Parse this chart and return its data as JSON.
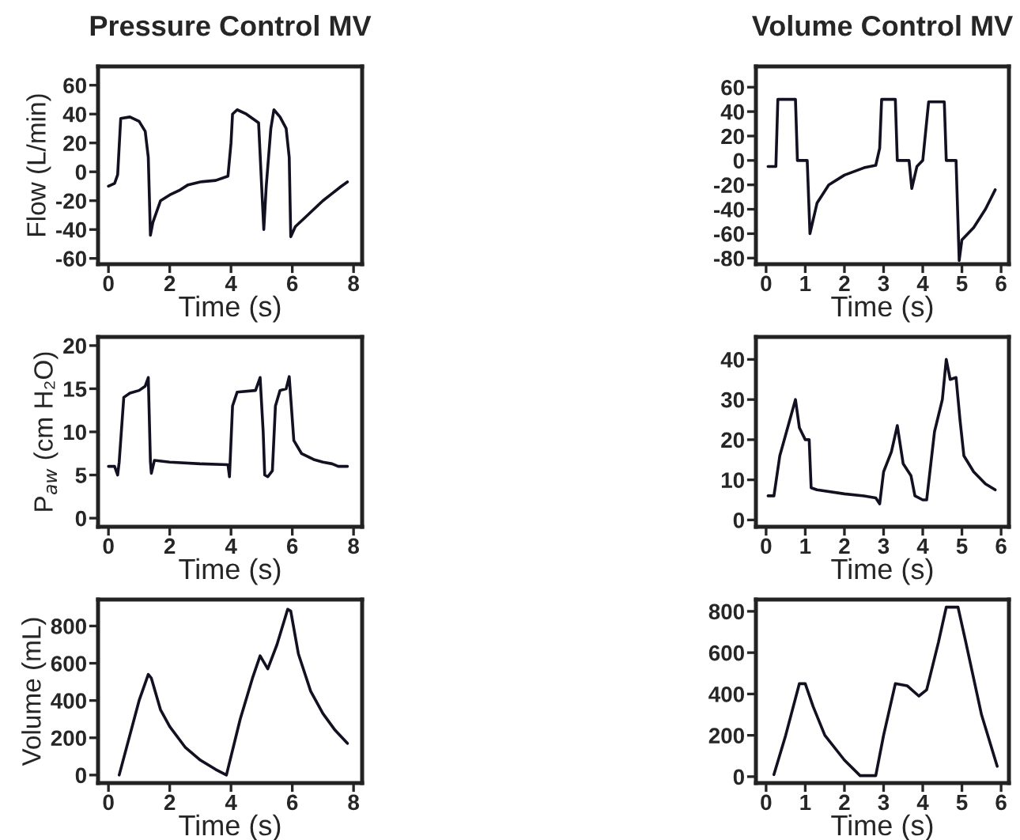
{
  "chart_data": [
    {
      "type": "line",
      "title": "Pressure Control MV",
      "xlabel": "Time (s)",
      "ylabel": "Flow (L/min)",
      "xlim": [
        -0.34,
        8.28
      ],
      "ylim": [
        -64,
        73
      ],
      "xticks": [
        0,
        2,
        4,
        6,
        8
      ],
      "yticks": [
        -60,
        -40,
        -20,
        0,
        20,
        40,
        60
      ],
      "grid": false,
      "legend": false,
      "marker": "none",
      "line_style": "solid",
      "series": [
        {
          "color": "#111122",
          "x": [
            0,
            0.2,
            0.3,
            0.4,
            0.7,
            1.0,
            1.2,
            1.3,
            1.37,
            1.45,
            1.7,
            2,
            2.3,
            2.6,
            3,
            3.5,
            3.9,
            4.0,
            4.05,
            4.2,
            4.5,
            4.9,
            5.0,
            5.07,
            5.15,
            5.3,
            5.4,
            5.6,
            5.8,
            5.9,
            5.95,
            6.1,
            6.5,
            7,
            7.3,
            7.6,
            7.8
          ],
          "values": [
            -10,
            -8,
            -2,
            37,
            38,
            35,
            28,
            10,
            -44,
            -35,
            -20,
            -16,
            -13,
            -9,
            -7,
            -6,
            -3,
            20,
            40,
            43,
            40,
            34,
            -10,
            -40,
            -10,
            30,
            43,
            38,
            30,
            10,
            -45,
            -38,
            -30,
            -20,
            -15,
            -10,
            -7
          ]
        }
      ]
    },
    {
      "type": "line",
      "title": "Volume Control MV",
      "xlabel": "Time (s)",
      "xlim": [
        -0.26,
        6.2
      ],
      "ylim": [
        -85,
        77
      ],
      "xticks": [
        0,
        1,
        2,
        3,
        4,
        5,
        6
      ],
      "yticks": [
        -80,
        -60,
        -40,
        -20,
        0,
        20,
        40,
        60
      ],
      "grid": false,
      "legend": false,
      "marker": "none",
      "line_style": "solid",
      "series": [
        {
          "color": "#111122",
          "x": [
            0.05,
            0.25,
            0.3,
            0.75,
            0.8,
            1.05,
            1.12,
            1.3,
            1.6,
            2,
            2.5,
            2.8,
            2.9,
            2.95,
            3.3,
            3.35,
            3.65,
            3.72,
            3.85,
            4,
            4.15,
            4.55,
            4.6,
            4.85,
            4.93,
            5,
            5.3,
            5.6,
            5.85
          ],
          "values": [
            -5,
            -5,
            50,
            50,
            0,
            0,
            -60,
            -35,
            -20,
            -12,
            -6,
            -4,
            10,
            50,
            50,
            0,
            0,
            -23,
            -5,
            0,
            48,
            48,
            0,
            0,
            -82,
            -65,
            -55,
            -40,
            -24
          ]
        }
      ]
    },
    {
      "type": "line",
      "xlabel": "Time (s)",
      "ylabel": "P$_{aw}$ (cm H₂O)",
      "xlim": [
        -0.34,
        8.28
      ],
      "ylim": [
        -1,
        21
      ],
      "xticks": [
        0,
        2,
        4,
        6,
        8
      ],
      "yticks": [
        0,
        5,
        10,
        15,
        20
      ],
      "grid": false,
      "legend": false,
      "marker": "none",
      "line_style": "solid",
      "series": [
        {
          "color": "#111122",
          "x": [
            0,
            0.2,
            0.3,
            0.35,
            0.5,
            0.7,
            1.0,
            1.2,
            1.3,
            1.37,
            1.4,
            1.5,
            2,
            3,
            3.9,
            3.95,
            4.05,
            4.2,
            4.8,
            4.95,
            5.05,
            5.1,
            5.2,
            5.35,
            5.45,
            5.6,
            5.8,
            5.9,
            6.05,
            6.3,
            6.7,
            7,
            7.3,
            7.5,
            7.8
          ],
          "values": [
            6,
            6,
            5,
            6.5,
            14,
            14.5,
            14.8,
            15.3,
            16.3,
            6.5,
            5.2,
            6.7,
            6.5,
            6.3,
            6.2,
            4.8,
            13,
            14.6,
            14.8,
            16.3,
            10,
            5,
            4.8,
            5.5,
            13,
            14.8,
            15,
            16.4,
            9,
            7.5,
            6.8,
            6.5,
            6.3,
            6,
            6
          ]
        }
      ]
    },
    {
      "type": "line",
      "xlabel": "Time (s)",
      "xlim": [
        -0.26,
        6.2
      ],
      "ylim": [
        -1.7,
        45.6
      ],
      "xticks": [
        0,
        1,
        2,
        3,
        4,
        5,
        6
      ],
      "yticks": [
        0,
        10,
        20,
        30,
        40
      ],
      "grid": false,
      "legend": false,
      "marker": "none",
      "line_style": "solid",
      "series": [
        {
          "color": "#111122",
          "x": [
            0.05,
            0.2,
            0.35,
            0.55,
            0.75,
            0.85,
            1,
            1.1,
            1.15,
            1.3,
            2,
            2.5,
            2.8,
            2.9,
            3,
            3.2,
            3.35,
            3.5,
            3.7,
            3.8,
            4,
            4.1,
            4.3,
            4.5,
            4.6,
            4.7,
            4.85,
            4.95,
            5.05,
            5.3,
            5.6,
            5.85
          ],
          "values": [
            6,
            6,
            16,
            23,
            30,
            23,
            20,
            20,
            8,
            7.5,
            6.5,
            6,
            5.5,
            4,
            12,
            17,
            23.5,
            14,
            11,
            6,
            5,
            5,
            22,
            30,
            40,
            35,
            35.5,
            25,
            16,
            12,
            9,
            7.5
          ]
        }
      ]
    },
    {
      "type": "line",
      "xlabel": "Time (s)",
      "ylabel": "Volume (mL)",
      "xlim": [
        -0.34,
        8.28
      ],
      "ylim": [
        -43,
        942
      ],
      "xticks": [
        0,
        2,
        4,
        6,
        8
      ],
      "yticks": [
        0,
        200,
        400,
        600,
        800
      ],
      "grid": false,
      "legend": false,
      "marker": "none",
      "line_style": "solid",
      "series": [
        {
          "color": "#111122",
          "x": [
            0.35,
            1.0,
            1.3,
            1.4,
            1.7,
            2,
            2.5,
            3,
            3.5,
            3.85,
            4.3,
            4.7,
            4.95,
            5.2,
            5.5,
            5.85,
            5.95,
            6.2,
            6.6,
            7,
            7.4,
            7.8
          ],
          "values": [
            0,
            400,
            540,
            520,
            350,
            260,
            150,
            80,
            30,
            0,
            300,
            520,
            640,
            570,
            700,
            890,
            880,
            650,
            450,
            330,
            240,
            170
          ]
        }
      ]
    },
    {
      "type": "line",
      "xlabel": "Time (s)",
      "xlim": [
        -0.26,
        6.2
      ],
      "ylim": [
        -31,
        857
      ],
      "xticks": [
        0,
        1,
        2,
        3,
        4,
        5,
        6
      ],
      "yticks": [
        0,
        200,
        400,
        600,
        800
      ],
      "grid": false,
      "legend": false,
      "marker": "none",
      "line_style": "solid",
      "series": [
        {
          "color": "#111122",
          "x": [
            0.2,
            0.5,
            0.85,
            1.0,
            1.2,
            1.5,
            2,
            2.4,
            2.8,
            3.0,
            3.3,
            3.6,
            3.9,
            4.1,
            4.4,
            4.6,
            4.9,
            5.1,
            5.5,
            5.9
          ],
          "values": [
            10,
            200,
            450,
            450,
            340,
            200,
            80,
            5,
            5,
            200,
            450,
            440,
            390,
            420,
            650,
            820,
            820,
            650,
            300,
            50
          ]
        }
      ]
    }
  ]
}
